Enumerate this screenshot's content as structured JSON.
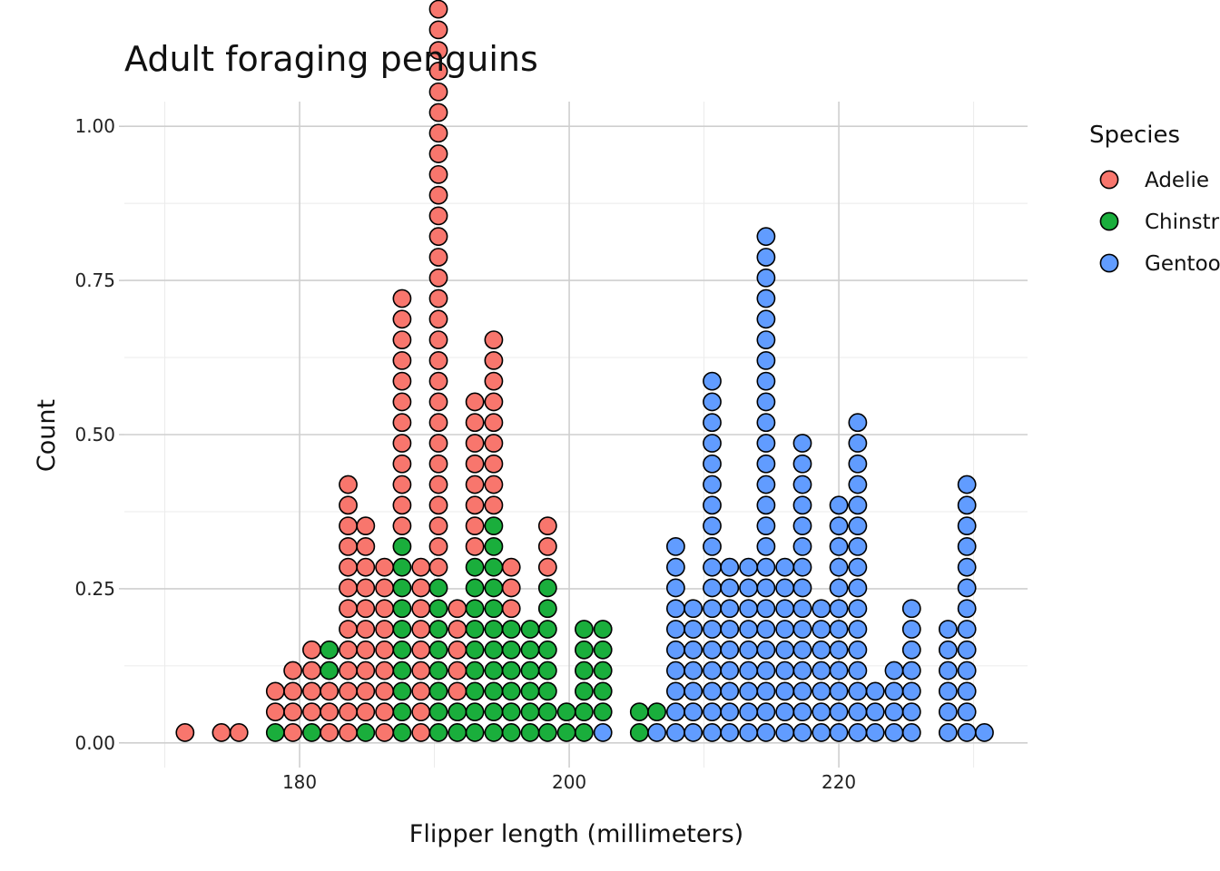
{
  "chart_data": {
    "type": "scatter",
    "subtype": "dotplot",
    "title": "Adult foraging penguins",
    "xlabel": "Flipper length (millimeters)",
    "ylabel": "Count",
    "xlim": [
      167,
      234
    ],
    "ylim": [
      -0.04,
      1.04
    ],
    "x_ticks": [
      180,
      200,
      220
    ],
    "x_tick_labels": [
      "180",
      "200",
      "220"
    ],
    "y_ticks": [
      0,
      0.25,
      0.5,
      0.75,
      1
    ],
    "y_tick_labels": [
      "0.00",
      "0.25",
      "0.50",
      "0.75",
      "1.00"
    ],
    "grid": true,
    "legend": {
      "title": "Species",
      "position": "right"
    },
    "dot_step": 0.06,
    "series": [
      {
        "name": "Adelie",
        "color": "#F8766D",
        "stacks": [
          {
            "x": 171.5,
            "count": 1,
            "base": 0
          },
          {
            "x": 174.2,
            "count": 1,
            "base": 0
          },
          {
            "x": 175.5,
            "count": 1,
            "base": 0
          },
          {
            "x": 178.2,
            "count": 2,
            "base": 1
          },
          {
            "x": 179.5,
            "count": 4,
            "base": 0
          },
          {
            "x": 180.9,
            "count": 4,
            "base": 1
          },
          {
            "x": 182.2,
            "count": 3,
            "base": 0
          },
          {
            "x": 183.6,
            "count": 13,
            "base": 0
          },
          {
            "x": 184.9,
            "count": 10,
            "base": 1
          },
          {
            "x": 186.3,
            "count": 9,
            "base": 0
          },
          {
            "x": 187.6,
            "count": 12,
            "base": 10
          },
          {
            "x": 189.0,
            "count": 9,
            "base": 0
          },
          {
            "x": 190.3,
            "count": 28,
            "base": 8
          },
          {
            "x": 191.7,
            "count": 5,
            "base": 2
          },
          {
            "x": 193.0,
            "count": 8,
            "base": 9
          },
          {
            "x": 194.4,
            "count": 9,
            "base": 11
          },
          {
            "x": 195.7,
            "count": 3,
            "base": 6
          },
          {
            "x": 198.4,
            "count": 3,
            "base": 8
          }
        ]
      },
      {
        "name": "Chinstrap",
        "color": "#1AAE3C",
        "stacks": [
          {
            "x": 178.2,
            "count": 1,
            "base": 0
          },
          {
            "x": 180.9,
            "count": 1,
            "base": 0
          },
          {
            "x": 182.2,
            "count": 2,
            "base": 3
          },
          {
            "x": 184.9,
            "count": 1,
            "base": 0
          },
          {
            "x": 187.6,
            "count": 10,
            "base": 0
          },
          {
            "x": 190.3,
            "count": 8,
            "base": 0
          },
          {
            "x": 191.7,
            "count": 2,
            "base": 0
          },
          {
            "x": 193.0,
            "count": 9,
            "base": 0
          },
          {
            "x": 194.4,
            "count": 11,
            "base": 0
          },
          {
            "x": 195.7,
            "count": 6,
            "base": 0
          },
          {
            "x": 197.1,
            "count": 6,
            "base": 0
          },
          {
            "x": 198.4,
            "count": 8,
            "base": 0
          },
          {
            "x": 199.8,
            "count": 2,
            "base": 0
          },
          {
            "x": 201.1,
            "count": 6,
            "base": 0
          },
          {
            "x": 202.5,
            "count": 5,
            "base": 1
          },
          {
            "x": 205.2,
            "count": 2,
            "base": 0
          },
          {
            "x": 206.5,
            "count": 1,
            "base": 1
          }
        ]
      },
      {
        "name": "Gentoo",
        "color": "#619CFF",
        "stacks": [
          {
            "x": 202.5,
            "count": 1,
            "base": 0
          },
          {
            "x": 206.5,
            "count": 1,
            "base": 0
          },
          {
            "x": 207.9,
            "count": 10,
            "base": 0
          },
          {
            "x": 209.2,
            "count": 7,
            "base": 0
          },
          {
            "x": 210.6,
            "count": 18,
            "base": 0
          },
          {
            "x": 211.9,
            "count": 9,
            "base": 0
          },
          {
            "x": 213.3,
            "count": 9,
            "base": 0
          },
          {
            "x": 214.6,
            "count": 25,
            "base": 0
          },
          {
            "x": 216.0,
            "count": 9,
            "base": 0
          },
          {
            "x": 217.3,
            "count": 15,
            "base": 0
          },
          {
            "x": 218.7,
            "count": 7,
            "base": 0
          },
          {
            "x": 220.0,
            "count": 12,
            "base": 0
          },
          {
            "x": 221.4,
            "count": 16,
            "base": 0
          },
          {
            "x": 222.7,
            "count": 3,
            "base": 0
          },
          {
            "x": 224.1,
            "count": 4,
            "base": 0
          },
          {
            "x": 225.4,
            "count": 7,
            "base": 0
          },
          {
            "x": 228.1,
            "count": 6,
            "base": 0
          },
          {
            "x": 229.5,
            "count": 13,
            "base": 0
          },
          {
            "x": 230.8,
            "count": 1,
            "base": 0
          }
        ]
      }
    ]
  }
}
